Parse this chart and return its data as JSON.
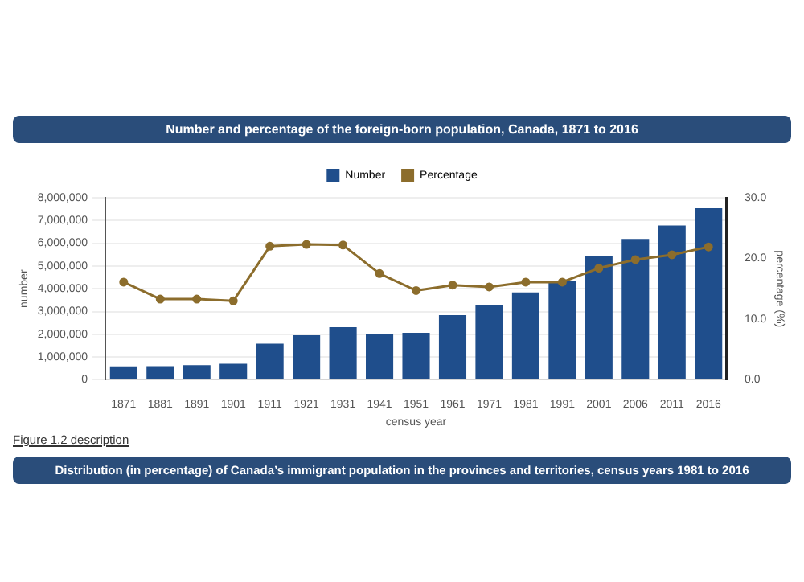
{
  "chart_data": {
    "type": "bar",
    "title": "Number and percentage of the foreign-born population, Canada, 1871 to 2016",
    "xlabel": "census year",
    "ylabel": "number",
    "y2label": "percentage (%)",
    "categories": [
      "1871",
      "1881",
      "1891",
      "1901",
      "1911",
      "1921",
      "1931",
      "1941",
      "1951",
      "1961",
      "1971",
      "1981",
      "1991",
      "2001",
      "2006",
      "2011",
      "2016"
    ],
    "series": [
      {
        "name": "Number",
        "color": "#1f4e8c",
        "values": [
          590000,
          600000,
          640000,
          700000,
          1590000,
          1960000,
          2310000,
          2020000,
          2060000,
          2840000,
          3300000,
          3840000,
          4340000,
          5450000,
          6190000,
          6780000,
          7540000
        ]
      },
      {
        "name": "Percentage",
        "type": "line",
        "axis": "y2",
        "color": "#8c6d2c",
        "marker": "circle",
        "values": [
          16.1,
          13.3,
          13.3,
          13.0,
          22.0,
          22.3,
          22.2,
          17.5,
          14.7,
          15.6,
          15.3,
          16.1,
          16.1,
          18.4,
          19.8,
          20.6,
          21.9
        ]
      }
    ],
    "ylim": [
      0,
      8000000
    ],
    "yticks": [
      {
        "value": 0,
        "label": "0"
      },
      {
        "value": 1000000,
        "label": "1,000,000"
      },
      {
        "value": 2000000,
        "label": "2,000,000"
      },
      {
        "value": 3000000,
        "label": "3,000,000"
      },
      {
        "value": 4000000,
        "label": "4,000,000"
      },
      {
        "value": 5000000,
        "label": "5,000,000"
      },
      {
        "value": 6000000,
        "label": "6,000,000"
      },
      {
        "value": 7000000,
        "label": "7,000,000"
      },
      {
        "value": 8000000,
        "label": "8,000,000"
      }
    ],
    "y2lim": [
      0,
      30
    ],
    "y2ticks": [
      {
        "value": 0,
        "label": "0.0"
      },
      {
        "value": 10,
        "label": "10.0"
      },
      {
        "value": 20,
        "label": "20.0"
      },
      {
        "value": 30,
        "label": "30.0"
      }
    ],
    "grid": "y",
    "legend": "top",
    "annotations": [
      "Figure 1.2 description",
      "Distribution (in percentage) of Canada’s immigrant population in the provinces and territories, census years 1981 to 2016"
    ]
  }
}
